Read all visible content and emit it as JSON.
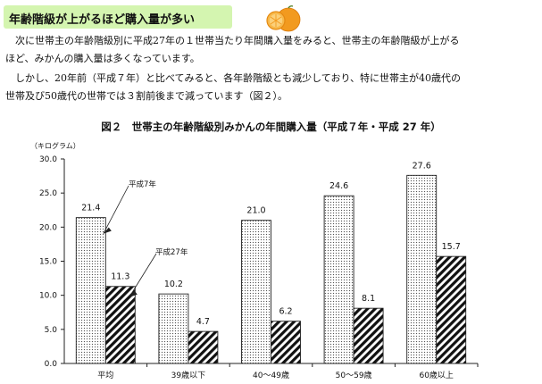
{
  "header": {
    "title": "年齢階級が上がるほど購入量が多い",
    "icon": "orange-icon"
  },
  "body_text": {
    "line1": "　次に世帯主の年齢階級別に平成27年の１世帯当たり年間購入量をみると、世帯主の年齢階級が上がる",
    "line2": "ほど、みかんの購入量は多くなっています。",
    "line3": "　しかし、20年前（平成７年）と比べてみると、各年齢階級とも減少しており、特に世帯主が40歳代の",
    "line4": "世帯及び50歳代の世帯では３割前後まで減っています（図２）。"
  },
  "figure": {
    "title": "図２　世帯主の年齢階級別みかんの年間購入量（平成７年・平成 27 年）"
  },
  "colors": {
    "header_bg": "#d4f5b0",
    "orange": "#f29a1f",
    "bar_outline": "#222222"
  },
  "chart_data": {
    "type": "bar",
    "categories": [
      "平均",
      "39歳以下",
      "40～49歳",
      "50～59歳",
      "60歳以上"
    ],
    "series": [
      {
        "name": "平成7年",
        "values": [
          21.4,
          10.2,
          21.0,
          24.6,
          27.6
        ],
        "pattern": "dotted"
      },
      {
        "name": "平成27年",
        "values": [
          11.3,
          4.7,
          6.2,
          8.1,
          15.7
        ],
        "pattern": "diagonal-hatch"
      }
    ],
    "value_labels": [
      [
        "21.4",
        "10.2",
        "21.0",
        "24.6",
        "27.6"
      ],
      [
        "11.3",
        "4.7",
        "6.2",
        "8.1",
        "15.7"
      ]
    ],
    "ylabel": "（キログラム）",
    "ylim": [
      0,
      30
    ],
    "yticks": [
      "0.0",
      "5.0",
      "10.0",
      "15.0",
      "20.0",
      "25.0",
      "30.0"
    ],
    "grid": false,
    "legend": "callouts"
  }
}
